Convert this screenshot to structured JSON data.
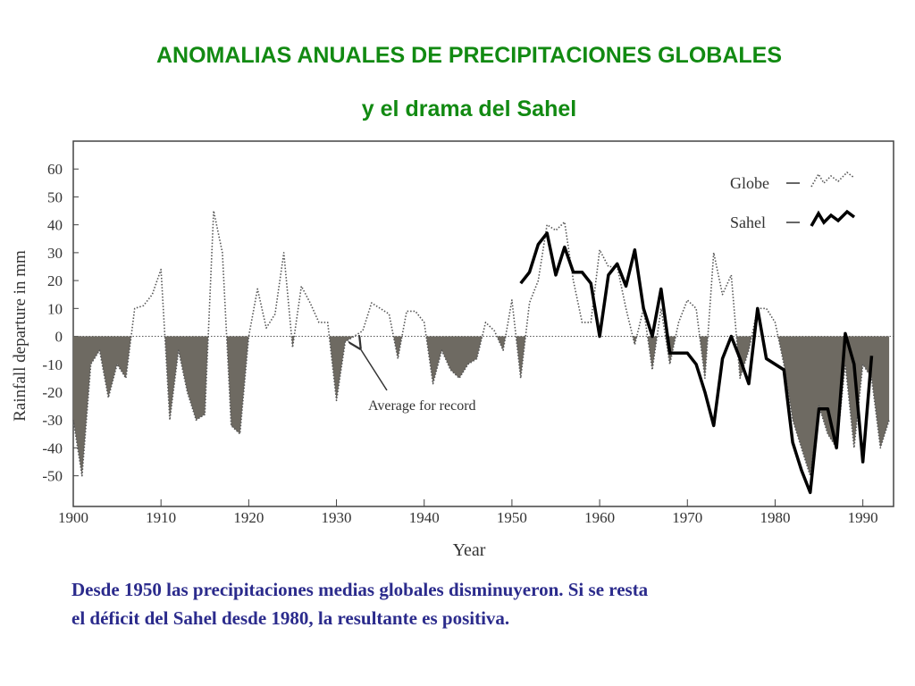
{
  "title": "ANOMALIAS ANUALES DE PRECIPITACIONES GLOBALES",
  "subtitle": "y el drama del Sahel",
  "caption": [
    "Desde 1950 las precipitaciones medias globales disminuyeron. Si se resta",
    "el déficit del Sahel desde 1980, la resultante es positiva."
  ],
  "chart_data": {
    "type": "line",
    "x_label": "Year",
    "y_label": "Rainfall departure in mm",
    "annotation": "Average for record",
    "x": [
      1900,
      1901,
      1902,
      1903,
      1904,
      1905,
      1906,
      1907,
      1908,
      1909,
      1910,
      1911,
      1912,
      1913,
      1914,
      1915,
      1916,
      1917,
      1918,
      1919,
      1920,
      1921,
      1922,
      1923,
      1924,
      1925,
      1926,
      1927,
      1928,
      1929,
      1930,
      1931,
      1932,
      1933,
      1934,
      1935,
      1936,
      1937,
      1938,
      1939,
      1940,
      1941,
      1942,
      1943,
      1944,
      1945,
      1946,
      1947,
      1948,
      1949,
      1950,
      1951,
      1952,
      1953,
      1954,
      1955,
      1956,
      1957,
      1958,
      1959,
      1960,
      1961,
      1962,
      1963,
      1964,
      1965,
      1966,
      1967,
      1968,
      1969,
      1970,
      1971,
      1972,
      1973,
      1974,
      1975,
      1976,
      1977,
      1978,
      1979,
      1980,
      1981,
      1982,
      1983,
      1984,
      1985,
      1986,
      1987,
      1988,
      1989,
      1990,
      1991,
      1992,
      1993
    ],
    "series": [
      {
        "name": "Globe",
        "color": "#555555",
        "style": "dotted",
        "fill_negative": "#6e6a62",
        "values": [
          -30,
          -50,
          -10,
          -5,
          -22,
          -10,
          -15,
          10,
          11,
          15,
          24,
          -30,
          -5,
          -20,
          -30,
          -28,
          45,
          30,
          -32,
          -35,
          0,
          17,
          3,
          8,
          30,
          -4,
          18,
          12,
          5,
          5,
          -23,
          -2,
          0,
          2,
          12,
          10,
          8,
          -8,
          9,
          9,
          5,
          -17,
          -5,
          -12,
          -15,
          -10,
          -8,
          5,
          2,
          -5,
          13,
          -15,
          12,
          20,
          40,
          38,
          41,
          20,
          5,
          5,
          31,
          25,
          25,
          10,
          -3,
          10,
          -12,
          10,
          -10,
          5,
          13,
          10,
          -15,
          30,
          15,
          22,
          -15,
          -5,
          10,
          10,
          5,
          -10,
          -30,
          -40,
          -50,
          -25,
          -35,
          -40,
          -10,
          -40,
          -10,
          -15,
          -40,
          -30
        ]
      },
      {
        "name": "Sahel",
        "color": "#000000",
        "style": "solid",
        "values": [
          null,
          null,
          null,
          null,
          null,
          null,
          null,
          null,
          null,
          null,
          null,
          null,
          null,
          null,
          null,
          null,
          null,
          null,
          null,
          null,
          null,
          null,
          null,
          null,
          null,
          null,
          null,
          null,
          null,
          null,
          null,
          null,
          null,
          null,
          null,
          null,
          null,
          null,
          null,
          null,
          null,
          null,
          null,
          null,
          null,
          null,
          null,
          null,
          null,
          null,
          null,
          19,
          23,
          33,
          37,
          22,
          32,
          23,
          23,
          19,
          0,
          22,
          26,
          18,
          31,
          10,
          0,
          17,
          -6,
          -6,
          -6,
          -10,
          -20,
          -32,
          -8,
          0,
          -8,
          -17,
          10,
          -8,
          -10,
          -12,
          -38,
          -48,
          -56,
          -26,
          -26,
          -40,
          1,
          -10,
          -45,
          -7,
          null,
          null
        ]
      }
    ],
    "xlim": [
      1900,
      1993.5
    ],
    "ylim": [
      -61,
      70
    ],
    "xticks": [
      1900,
      1910,
      1920,
      1930,
      1940,
      1950,
      1960,
      1970,
      1980,
      1990
    ],
    "yticks": [
      60,
      50,
      40,
      30,
      20,
      10,
      0,
      -10,
      -20,
      -30,
      -40,
      -50
    ],
    "legend": "upper right"
  }
}
